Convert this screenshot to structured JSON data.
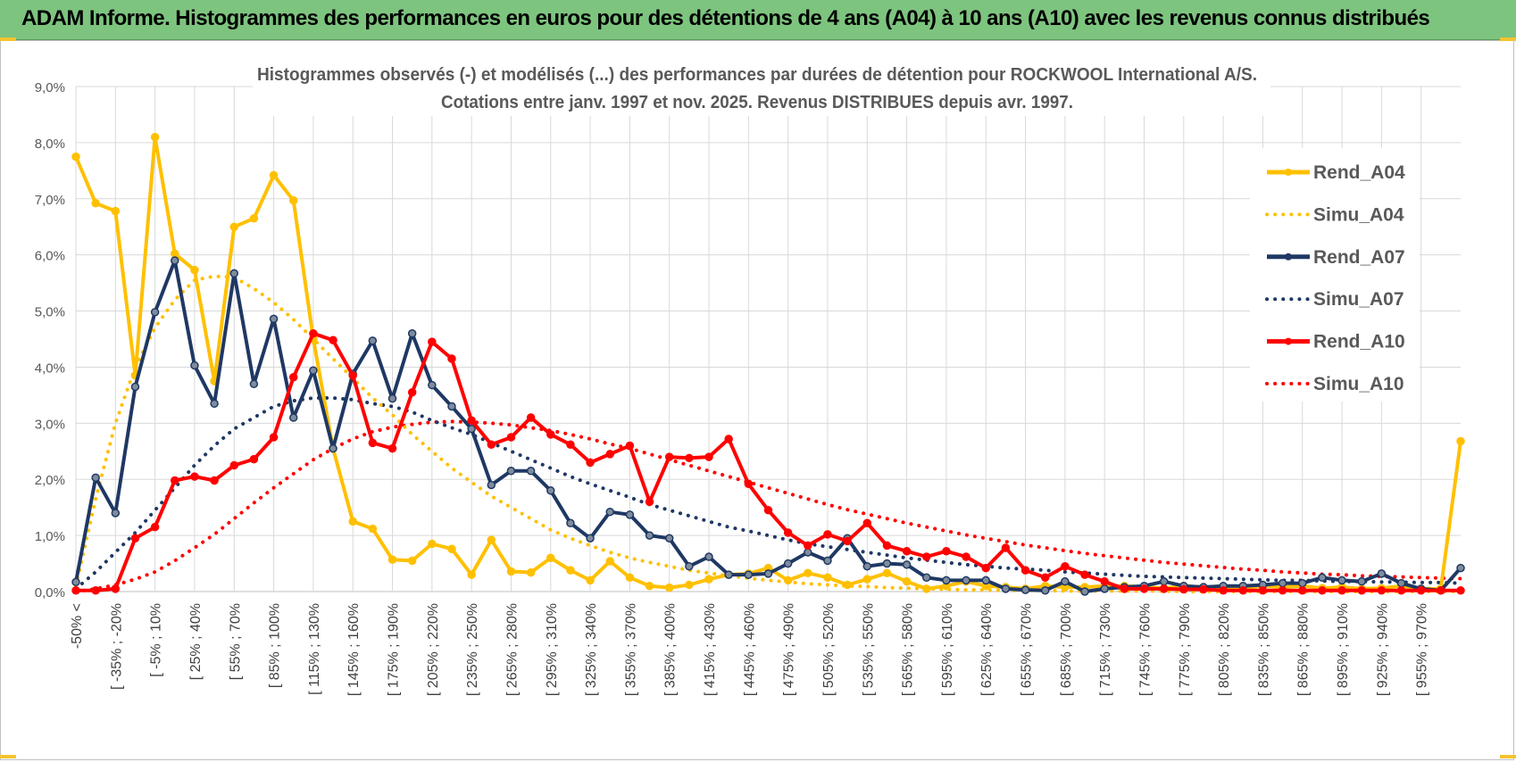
{
  "header": {
    "banner_title": "ADAM Informe. Histogrammes des performances en euros pour des détentions de 4 ans (A04) à 10 ans (A10) avec les revenus connus distribués"
  },
  "chart_data": {
    "type": "line",
    "title": "Histogrammes observés (-) et modélisés (...)  des performances par durées de détention pour ROCKWOOL International A/S.",
    "subtitle": "Cotations entre janv. 1997 et nov. 2025. Revenus DISTRIBUES  depuis avr. 1997.",
    "xlabel": "",
    "ylabel": "",
    "ylim": [
      0,
      9
    ],
    "y_ticks": [
      "0,0%",
      "1,0%",
      "2,0%",
      "3,0%",
      "4,0%",
      "5,0%",
      "6,0%",
      "7,0%",
      "8,0%",
      "9,0%"
    ],
    "grid": true,
    "legend_position": "right",
    "x_tick_labels": [
      "-50% <",
      "[ -35% ; -20%",
      "[ -5% ; 10%",
      "[ 25% ; 40%",
      "[ 55% ; 70%",
      "[ 85% ; 100%",
      "[ 115% ; 130%",
      "[ 145% ; 160%",
      "[ 175% ; 190%",
      "[ 205% ; 220%",
      "[ 235% ; 250%",
      "[ 265% ; 280%",
      "[ 295% ; 310%",
      "[ 325% ; 340%",
      "[ 355% ; 370%",
      "[ 385% ; 400%",
      "[ 415% ; 430%",
      "[ 445% ; 460%",
      "[ 475% ; 490%",
      "[ 505% ; 520%",
      "[ 535% ; 550%",
      "[ 565% ; 580%",
      "[ 595% ; 610%",
      "[ 625% ; 640%",
      "[ 655% ; 670%",
      "[ 685% ; 700%",
      "[ 715% ; 730%",
      "[ 745% ; 760%",
      "[ 775% ; 790%",
      "[ 805% ; 820%",
      "[ 835% ; 850%",
      "[ 865% ; 880%",
      "[ 895% ; 910%",
      "[ 925% ; 940%",
      "[ 955% ; 970%"
    ],
    "series": [
      {
        "name": "Rend_A04",
        "style": "solid",
        "color": "#ffc000",
        "values": [
          7.75,
          6.92,
          6.78,
          3.85,
          8.1,
          6.02,
          5.73,
          3.75,
          6.5,
          6.65,
          7.42,
          6.97,
          4.5,
          2.55,
          1.25,
          1.12,
          0.57,
          0.55,
          0.85,
          0.76,
          0.3,
          0.92,
          0.36,
          0.34,
          0.6,
          0.38,
          0.2,
          0.54,
          0.25,
          0.1,
          0.07,
          0.12,
          0.22,
          0.3,
          0.32,
          0.42,
          0.2,
          0.33,
          0.25,
          0.12,
          0.22,
          0.33,
          0.18,
          0.05,
          0.1,
          0.18,
          0.1,
          0.08,
          0.05,
          0.1,
          0.08,
          0.08,
          0.1,
          0.1,
          0.08,
          0.06,
          0.1,
          0.08,
          0.05,
          0.06,
          0.1,
          0.08,
          0.1,
          0.06,
          0.08,
          0.05,
          0.06,
          0.1,
          0.05,
          0.05,
          2.68
        ]
      },
      {
        "name": "Simu_A04",
        "style": "dotted",
        "color": "#ffc000",
        "values": [
          0.1,
          1.65,
          3.0,
          4.0,
          4.7,
          5.2,
          5.55,
          5.62,
          5.6,
          5.4,
          5.15,
          4.85,
          4.5,
          4.15,
          3.8,
          3.45,
          3.15,
          2.8,
          2.5,
          2.2,
          1.95,
          1.7,
          1.5,
          1.3,
          1.1,
          0.95,
          0.82,
          0.7,
          0.6,
          0.52,
          0.45,
          0.38,
          0.33,
          0.28,
          0.24,
          0.2,
          0.17,
          0.14,
          0.12,
          0.1,
          0.09,
          0.07,
          0.06,
          0.05,
          0.04,
          0.03,
          0.03,
          0.02,
          0.02,
          0.02,
          0.01,
          0.01,
          0.01,
          0.01,
          0.01,
          0.01,
          0.0,
          0.0,
          0.0,
          0.0,
          0.0,
          0.0,
          0.0,
          0.0,
          0.0,
          0.0,
          0.0,
          0.0,
          0.0,
          0.0,
          0.0
        ]
      },
      {
        "name": "Rend_A07",
        "style": "solid",
        "color": "#1f3864",
        "values": [
          0.17,
          2.03,
          1.4,
          3.65,
          4.98,
          5.9,
          4.03,
          3.35,
          5.67,
          3.7,
          4.86,
          3.1,
          3.94,
          2.55,
          3.88,
          4.47,
          3.44,
          4.6,
          3.68,
          3.3,
          2.9,
          1.9,
          2.15,
          2.15,
          1.8,
          1.22,
          0.95,
          1.42,
          1.37,
          1.0,
          0.95,
          0.45,
          0.62,
          0.3,
          0.3,
          0.32,
          0.5,
          0.7,
          0.55,
          0.95,
          0.45,
          0.5,
          0.48,
          0.25,
          0.2,
          0.2,
          0.2,
          0.05,
          0.03,
          0.02,
          0.18,
          0.0,
          0.05,
          0.08,
          0.1,
          0.18,
          0.1,
          0.08,
          0.1,
          0.1,
          0.12,
          0.15,
          0.15,
          0.25,
          0.2,
          0.18,
          0.32,
          0.15,
          0.05,
          0.02,
          0.42
        ]
      },
      {
        "name": "Simu_A07",
        "style": "dotted",
        "color": "#1f3864",
        "values": [
          0.05,
          0.35,
          0.7,
          1.05,
          1.45,
          1.85,
          2.25,
          2.6,
          2.9,
          3.1,
          3.3,
          3.4,
          3.45,
          3.45,
          3.42,
          3.35,
          3.3,
          3.2,
          3.05,
          2.92,
          2.8,
          2.65,
          2.5,
          2.35,
          2.2,
          2.05,
          1.92,
          1.8,
          1.68,
          1.55,
          1.45,
          1.35,
          1.25,
          1.15,
          1.08,
          1.0,
          0.92,
          0.85,
          0.8,
          0.75,
          0.7,
          0.65,
          0.6,
          0.56,
          0.52,
          0.48,
          0.45,
          0.42,
          0.4,
          0.38,
          0.35,
          0.33,
          0.31,
          0.29,
          0.27,
          0.26,
          0.25,
          0.24,
          0.23,
          0.22,
          0.21,
          0.2,
          0.2,
          0.19,
          0.18,
          0.18,
          0.17,
          0.17,
          0.16,
          0.16,
          0.15
        ]
      },
      {
        "name": "Rend_A10",
        "style": "solid",
        "color": "#ff0000",
        "values": [
          0.02,
          0.02,
          0.05,
          0.95,
          1.15,
          1.98,
          2.05,
          1.98,
          2.25,
          2.36,
          2.75,
          3.82,
          4.6,
          4.48,
          3.85,
          2.65,
          2.55,
          3.55,
          4.45,
          4.15,
          3.05,
          2.62,
          2.75,
          3.1,
          2.8,
          2.62,
          2.3,
          2.45,
          2.6,
          1.6,
          2.4,
          2.38,
          2.4,
          2.72,
          1.92,
          1.45,
          1.05,
          0.82,
          1.02,
          0.9,
          1.22,
          0.82,
          0.72,
          0.62,
          0.72,
          0.62,
          0.42,
          0.78,
          0.38,
          0.25,
          0.45,
          0.3,
          0.18,
          0.05,
          0.05,
          0.05,
          0.04,
          0.04,
          0.02,
          0.02,
          0.02,
          0.02,
          0.02,
          0.02,
          0.02,
          0.02,
          0.02,
          0.02,
          0.02,
          0.02,
          0.02
        ]
      },
      {
        "name": "Simu_A10",
        "style": "dotted",
        "color": "#ff0000",
        "values": [
          0.0,
          0.05,
          0.12,
          0.22,
          0.35,
          0.55,
          0.78,
          1.02,
          1.3,
          1.58,
          1.85,
          2.1,
          2.35,
          2.55,
          2.72,
          2.85,
          2.93,
          2.98,
          3.02,
          3.03,
          3.02,
          3.0,
          2.97,
          2.92,
          2.87,
          2.8,
          2.72,
          2.63,
          2.55,
          2.45,
          2.35,
          2.25,
          2.15,
          2.05,
          1.95,
          1.85,
          1.75,
          1.65,
          1.55,
          1.46,
          1.38,
          1.3,
          1.22,
          1.15,
          1.08,
          1.01,
          0.95,
          0.89,
          0.83,
          0.78,
          0.73,
          0.68,
          0.64,
          0.6,
          0.56,
          0.52,
          0.49,
          0.46,
          0.43,
          0.4,
          0.38,
          0.35,
          0.33,
          0.31,
          0.3,
          0.28,
          0.27,
          0.26,
          0.25,
          0.24,
          0.23
        ]
      }
    ]
  }
}
